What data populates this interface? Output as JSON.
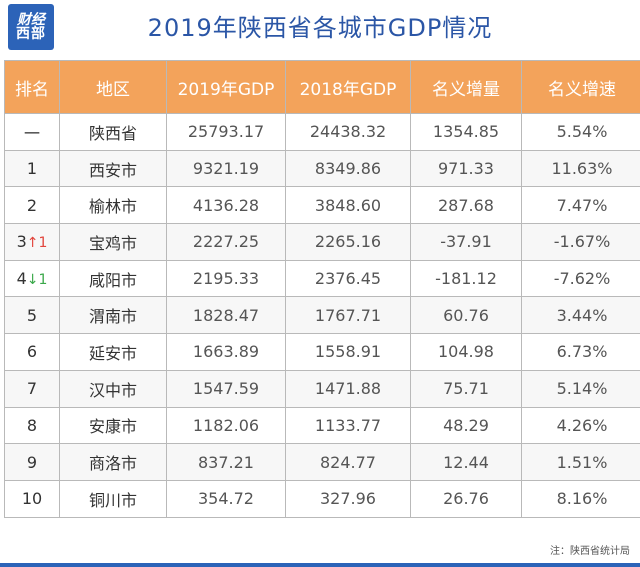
{
  "logo": {
    "line1": "财经",
    "line2": "西部"
  },
  "title": "2019年陕西省各城市GDP情况",
  "table": {
    "headers": [
      "排名",
      "地区",
      "2019年GDP",
      "2018年GDP",
      "名义增量",
      "名义增速"
    ],
    "rows": [
      {
        "rank": "一",
        "rank_change": "",
        "change_dir": "",
        "region": "陕西省",
        "gdp2019": "25793.17",
        "gdp2018": "24438.32",
        "increase": "1354.85",
        "rate": "5.54%"
      },
      {
        "rank": "1",
        "rank_change": "",
        "change_dir": "",
        "region": "西安市",
        "gdp2019": "9321.19",
        "gdp2018": "8349.86",
        "increase": "971.33",
        "rate": "11.63%"
      },
      {
        "rank": "2",
        "rank_change": "",
        "change_dir": "",
        "region": "榆林市",
        "gdp2019": "4136.28",
        "gdp2018": "3848.60",
        "increase": "287.68",
        "rate": "7.47%"
      },
      {
        "rank": "3",
        "rank_change": "↑1",
        "change_dir": "up",
        "region": "宝鸡市",
        "gdp2019": "2227.25",
        "gdp2018": "2265.16",
        "increase": "-37.91",
        "rate": "-1.67%"
      },
      {
        "rank": "4",
        "rank_change": "↓1",
        "change_dir": "down",
        "region": "咸阳市",
        "gdp2019": "2195.33",
        "gdp2018": "2376.45",
        "increase": "-181.12",
        "rate": "-7.62%"
      },
      {
        "rank": "5",
        "rank_change": "",
        "change_dir": "",
        "region": "渭南市",
        "gdp2019": "1828.47",
        "gdp2018": "1767.71",
        "increase": "60.76",
        "rate": "3.44%"
      },
      {
        "rank": "6",
        "rank_change": "",
        "change_dir": "",
        "region": "延安市",
        "gdp2019": "1663.89",
        "gdp2018": "1558.91",
        "increase": "104.98",
        "rate": "6.73%"
      },
      {
        "rank": "7",
        "rank_change": "",
        "change_dir": "",
        "region": "汉中市",
        "gdp2019": "1547.59",
        "gdp2018": "1471.88",
        "increase": "75.71",
        "rate": "5.14%"
      },
      {
        "rank": "8",
        "rank_change": "",
        "change_dir": "",
        "region": "安康市",
        "gdp2019": "1182.06",
        "gdp2018": "1133.77",
        "increase": "48.29",
        "rate": "4.26%"
      },
      {
        "rank": "9",
        "rank_change": "",
        "change_dir": "",
        "region": "商洛市",
        "gdp2019": "837.21",
        "gdp2018": "824.77",
        "increase": "12.44",
        "rate": "1.51%"
      },
      {
        "rank": "10",
        "rank_change": "",
        "change_dir": "",
        "region": "铜川市",
        "gdp2019": "354.72",
        "gdp2018": "327.96",
        "increase": "26.76",
        "rate": "8.16%"
      }
    ]
  },
  "footnote": "注：陕西省统计局",
  "colors": {
    "header_bg": "#f3a35b",
    "title": "#2b56a6",
    "logo_bg": "#2c63b8",
    "up": "#e2453c",
    "down": "#3aa84a"
  }
}
